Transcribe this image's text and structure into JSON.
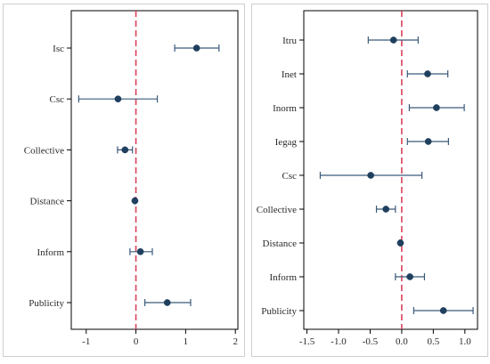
{
  "chart_data": [
    {
      "type": "coefficient-plot",
      "categories": [
        "Isc",
        "Csc",
        "Collective",
        "Distance",
        "Inform",
        "Publicity"
      ],
      "estimates": [
        1.22,
        -0.36,
        -0.22,
        -0.02,
        0.09,
        0.63
      ],
      "ci_low": [
        0.78,
        -1.15,
        -0.37,
        -0.03,
        -0.12,
        0.18
      ],
      "ci_high": [
        1.67,
        0.43,
        -0.07,
        -0.01,
        0.33,
        1.1
      ],
      "x_ticks": [
        "-1",
        "0",
        "1",
        "2"
      ],
      "xlim": [
        -1.3,
        2.05
      ],
      "reference_line": 0,
      "title": "",
      "xlabel": "",
      "ylabel": "",
      "grid": false
    },
    {
      "type": "coefficient-plot",
      "categories": [
        "Itru",
        "Inet",
        "Inorm",
        "Iegag",
        "Csc",
        "Collective",
        "Distance",
        "Inform",
        "Publicity"
      ],
      "estimates": [
        -0.13,
        0.41,
        0.55,
        0.42,
        -0.49,
        -0.25,
        -0.02,
        0.13,
        0.66
      ],
      "ci_low": [
        -0.53,
        0.09,
        0.12,
        0.09,
        -1.29,
        -0.4,
        -0.03,
        -0.1,
        0.19
      ],
      "ci_high": [
        0.26,
        0.73,
        0.99,
        0.74,
        0.32,
        -0.1,
        -0.01,
        0.36,
        1.13
      ],
      "x_ticks": [
        "-1.5",
        "-1.0",
        "-0.5",
        "0.0",
        "0.5",
        "1.0"
      ],
      "xlim": [
        -1.55,
        1.2
      ],
      "reference_line": 0,
      "title": "",
      "xlabel": "",
      "ylabel": "",
      "grid": false
    }
  ],
  "colors": {
    "marker": "#1f3f5e",
    "errorbar": "#3a5a7a",
    "reference_line": "#d9435b",
    "frame": "#000000",
    "panel_border": "#cfcfcf"
  },
  "icons": {
    "marker": "filled-circle"
  }
}
